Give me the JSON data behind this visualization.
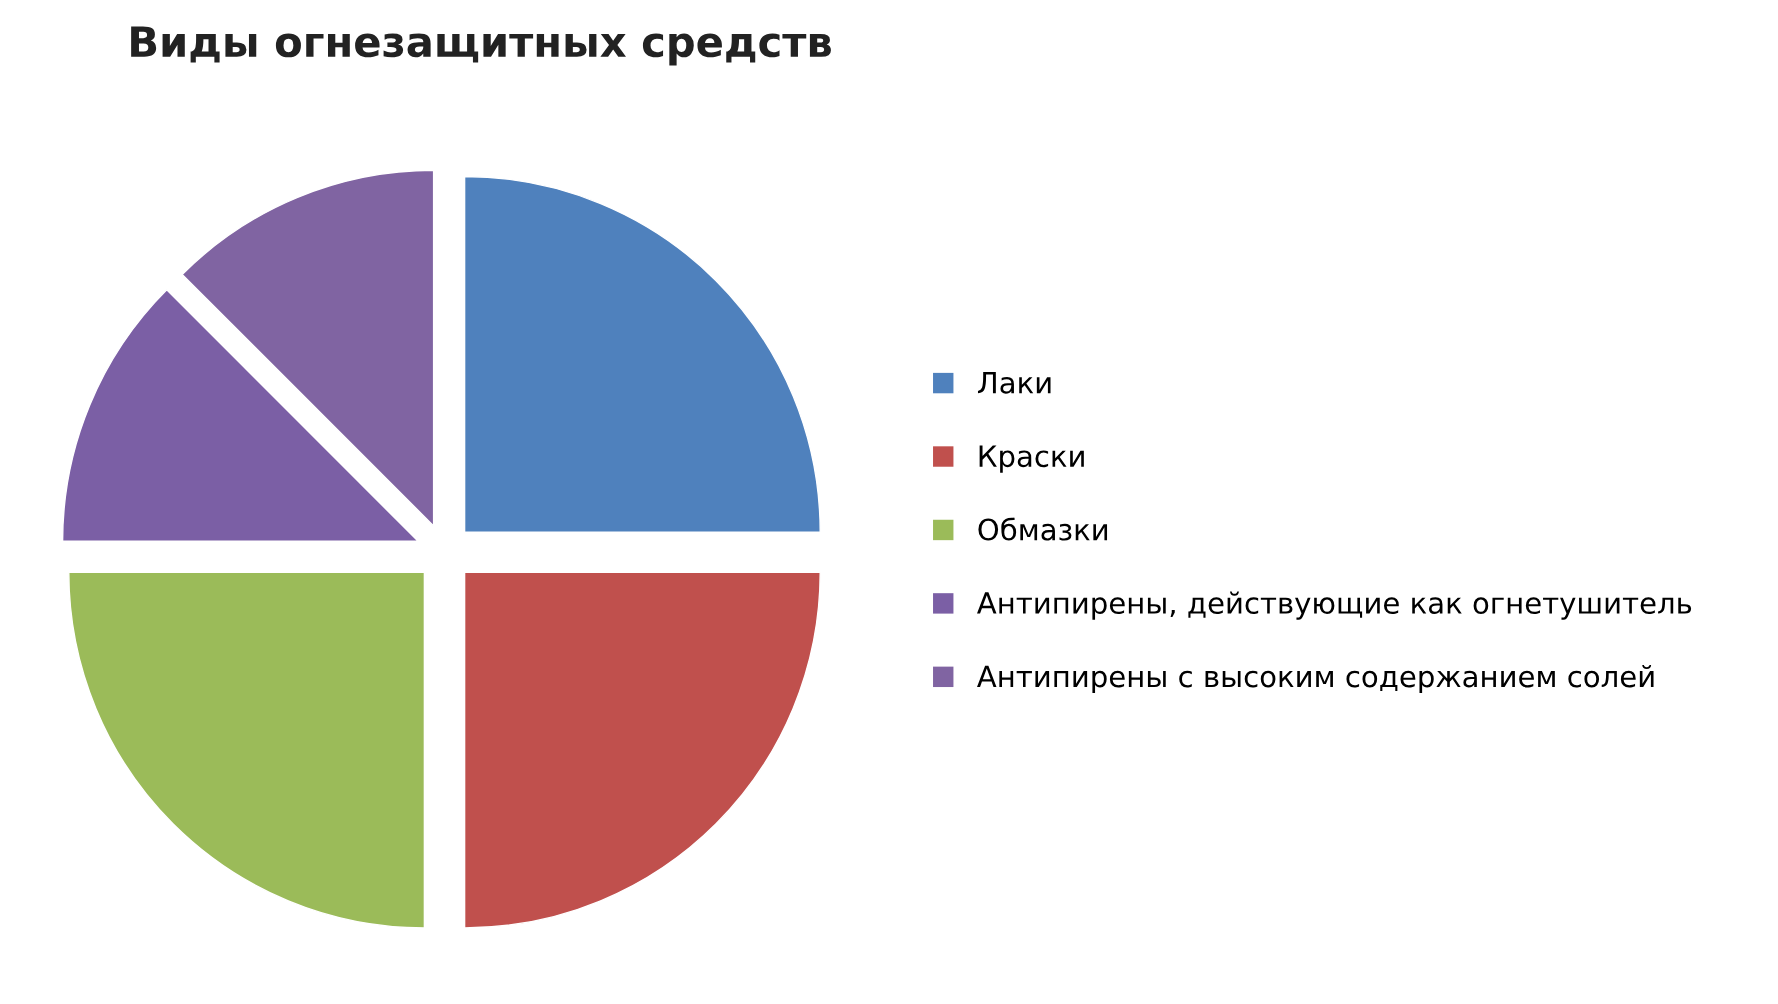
{
  "chart_data": {
    "type": "pie",
    "title": "Виды огнезащитных средств",
    "categories": [
      "Лаки",
      "Краски",
      "Обмазки",
      "Антипирены, действующие как огнетушитель",
      "Антипирены с высоким содержанием солей"
    ],
    "values": [
      25,
      25,
      25,
      12.5,
      12.5
    ],
    "colors": [
      "#4f81bd",
      "#c0504d",
      "#9bbb59",
      "#7b5fa5",
      "#8064a2"
    ],
    "legend": "right"
  }
}
